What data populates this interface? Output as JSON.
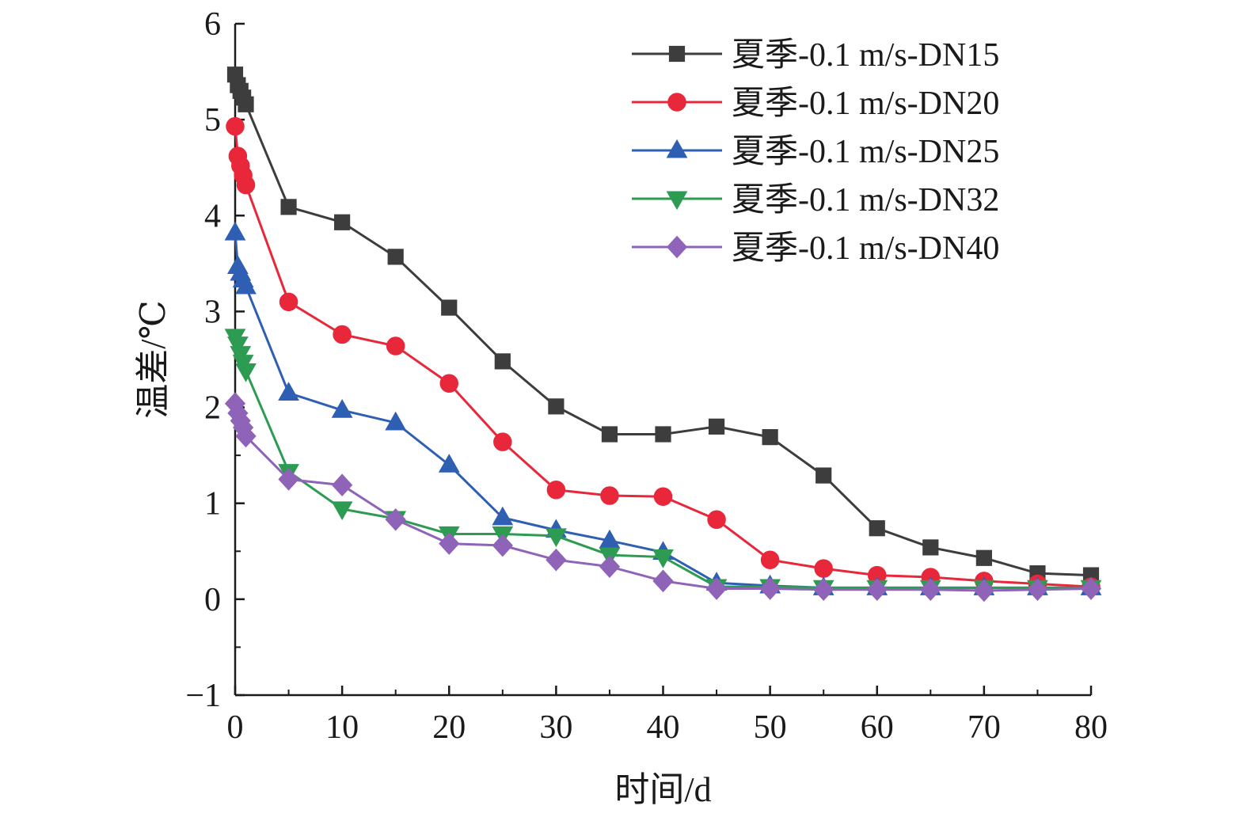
{
  "chart_data": {
    "type": "line",
    "xlabel": "时间/d",
    "ylabel": "温差/℃",
    "xlim": [
      0,
      80
    ],
    "ylim": [
      -1,
      6
    ],
    "xticks": [
      0,
      10,
      20,
      30,
      40,
      50,
      60,
      70,
      80
    ],
    "yticks": [
      -1,
      0,
      1,
      2,
      3,
      4,
      5,
      6
    ],
    "xtick_labels": [
      "0",
      "10",
      "20",
      "30",
      "40",
      "50",
      "60",
      "70",
      "80"
    ],
    "ytick_labels": [
      "−1",
      "0",
      "1",
      "2",
      "3",
      "4",
      "5",
      "6"
    ],
    "grid": false,
    "legend_position": "top-right",
    "series": [
      {
        "name": "夏季-0.1 m/s-DN15",
        "color": "#3d3d3d",
        "marker": "square",
        "x": [
          0,
          0.25,
          0.5,
          0.75,
          1,
          5,
          10,
          15,
          20,
          25,
          30,
          35,
          40,
          45,
          50,
          55,
          60,
          65,
          70,
          75,
          80
        ],
        "y": [
          5.47,
          5.36,
          5.3,
          5.23,
          5.16,
          4.09,
          3.93,
          3.57,
          3.04,
          2.48,
          2.01,
          1.72,
          1.72,
          1.8,
          1.69,
          1.29,
          0.74,
          0.54,
          0.43,
          0.27,
          0.25
        ]
      },
      {
        "name": "夏季-0.1 m/s-DN20",
        "color": "#e8283a",
        "marker": "circle",
        "x": [
          0,
          0.25,
          0.5,
          0.75,
          1,
          5,
          10,
          15,
          20,
          25,
          30,
          35,
          40,
          45,
          50,
          55,
          60,
          65,
          70,
          75,
          80
        ],
        "y": [
          4.93,
          4.62,
          4.52,
          4.42,
          4.32,
          3.1,
          2.76,
          2.64,
          2.25,
          1.64,
          1.14,
          1.08,
          1.07,
          0.83,
          0.41,
          0.32,
          0.25,
          0.23,
          0.19,
          0.16,
          0.13
        ]
      },
      {
        "name": "夏季-0.1 m/s-DN25",
        "color": "#2f5fb3",
        "marker": "triangle-up",
        "x": [
          0,
          0.25,
          0.5,
          0.75,
          1,
          5,
          10,
          15,
          20,
          25,
          30,
          35,
          40,
          45,
          50,
          55,
          60,
          65,
          70,
          75,
          80
        ],
        "y": [
          3.82,
          3.47,
          3.4,
          3.33,
          3.26,
          2.15,
          1.97,
          1.84,
          1.4,
          0.85,
          0.72,
          0.61,
          0.49,
          0.17,
          0.14,
          0.12,
          0.12,
          0.12,
          0.12,
          0.12,
          0.12
        ]
      },
      {
        "name": "夏季-0.1 m/s-DN32",
        "color": "#2e9b52",
        "marker": "triangle-down",
        "x": [
          0,
          0.25,
          0.5,
          0.75,
          1,
          5,
          10,
          15,
          20,
          25,
          30,
          35,
          40,
          45,
          50,
          55,
          60,
          65,
          70,
          75,
          80
        ],
        "y": [
          2.74,
          2.66,
          2.56,
          2.47,
          2.38,
          1.33,
          0.94,
          0.84,
          0.68,
          0.68,
          0.66,
          0.46,
          0.44,
          0.13,
          0.13,
          0.12,
          0.12,
          0.12,
          0.12,
          0.12,
          0.12
        ]
      },
      {
        "name": "夏季-0.1 m/s-DN40",
        "color": "#8e63b8",
        "marker": "diamond",
        "x": [
          0,
          0.25,
          0.5,
          0.75,
          1,
          5,
          10,
          15,
          20,
          25,
          30,
          35,
          40,
          45,
          50,
          55,
          60,
          65,
          70,
          75,
          80
        ],
        "y": [
          2.04,
          1.94,
          1.86,
          1.79,
          1.7,
          1.25,
          1.19,
          0.83,
          0.58,
          0.56,
          0.41,
          0.34,
          0.19,
          0.11,
          0.11,
          0.1,
          0.1,
          0.1,
          0.09,
          0.1,
          0.11
        ]
      }
    ]
  }
}
